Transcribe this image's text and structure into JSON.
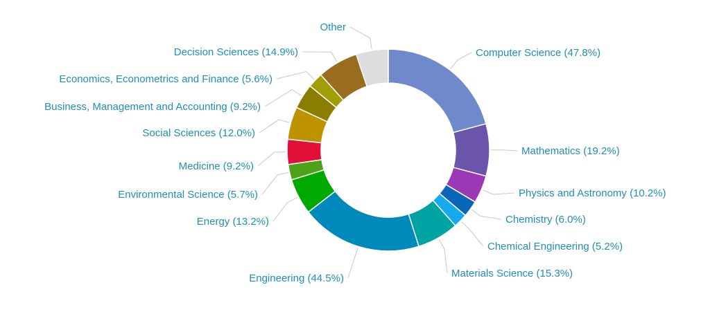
{
  "chart_data": {
    "type": "pie",
    "variant": "donut",
    "title": "",
    "label_color": "#1f8fb7",
    "leader_color": "#c8c8c8",
    "slices": [
      {
        "label": "Computer Science",
        "value": 47.8,
        "display": "Computer Science (47.8%)",
        "color": "#7089cc"
      },
      {
        "label": "Mathematics",
        "value": 19.2,
        "display": "Mathematics (19.2%)",
        "color": "#6a55aa"
      },
      {
        "label": "Physics and Astronomy",
        "value": 10.2,
        "display": "Physics and Astronomy (10.2%)",
        "color": "#9b38b6"
      },
      {
        "label": "Chemistry",
        "value": 6.0,
        "display": "Chemistry (6.0%)",
        "color": "#0a66b8"
      },
      {
        "label": "Chemical Engineering",
        "value": 5.2,
        "display": "Chemical Engineering (5.2%)",
        "color": "#17a9ee"
      },
      {
        "label": "Materials Science",
        "value": 15.3,
        "display": "Materials Science (15.3%)",
        "color": "#00a3a3"
      },
      {
        "label": "Engineering",
        "value": 44.5,
        "display": "Engineering (44.5%)",
        "color": "#0089bb"
      },
      {
        "label": "Energy",
        "value": 13.2,
        "display": "Energy (13.2%)",
        "color": "#00a900"
      },
      {
        "label": "Environmental Science",
        "value": 5.7,
        "display": "Environmental Science (5.7%)",
        "color": "#4fa218"
      },
      {
        "label": "Medicine",
        "value": 9.2,
        "display": "Medicine (9.2%)",
        "color": "#e20f37"
      },
      {
        "label": "Social Sciences",
        "value": 12.0,
        "display": "Social Sciences (12.0%)",
        "color": "#bf9300"
      },
      {
        "label": "Business, Management and Accounting",
        "value": 9.2,
        "display": "Business, Management and Accounting (9.2%)",
        "color": "#8b7d00"
      },
      {
        "label": "Economics, Econometrics and Finance",
        "value": 5.6,
        "display": "Economics, Econometrics and Finance (5.6%)",
        "color": "#a09e00"
      },
      {
        "label": "Decision Sciences",
        "value": 14.9,
        "display": "Decision Sciences (14.9%)",
        "color": "#9a6d1e"
      },
      {
        "label": "Other",
        "value": 11.8,
        "display": "Other",
        "color": "#dddddd"
      }
    ]
  }
}
